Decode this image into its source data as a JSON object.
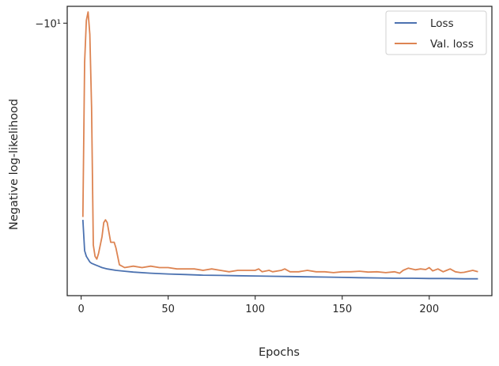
{
  "chart_data": {
    "type": "line",
    "xlabel": "Epochs",
    "ylabel": "Negative log-likelihood",
    "xlim": [
      -8,
      236
    ],
    "xticks": [
      0,
      50,
      100,
      150,
      200
    ],
    "yscale": "symlog",
    "ylim": [
      -10.97,
      -9.94
    ],
    "yticks": [
      {
        "value": -10,
        "label": "−10¹"
      }
    ],
    "grid": false,
    "legend_position": "top-right",
    "series": [
      {
        "name": "Loss",
        "color": "#4C72B0",
        "points": [
          [
            1,
            -10.7
          ],
          [
            2,
            -10.81
          ],
          [
            3,
            -10.83
          ],
          [
            4,
            -10.84
          ],
          [
            5,
            -10.85
          ],
          [
            6,
            -10.855
          ],
          [
            8,
            -10.86
          ],
          [
            10,
            -10.865
          ],
          [
            12,
            -10.87
          ],
          [
            15,
            -10.875
          ],
          [
            20,
            -10.88
          ],
          [
            25,
            -10.883
          ],
          [
            30,
            -10.886
          ],
          [
            40,
            -10.89
          ],
          [
            50,
            -10.893
          ],
          [
            60,
            -10.895
          ],
          [
            70,
            -10.897
          ],
          [
            80,
            -10.898
          ],
          [
            90,
            -10.899
          ],
          [
            100,
            -10.9
          ],
          [
            110,
            -10.901
          ],
          [
            120,
            -10.902
          ],
          [
            130,
            -10.903
          ],
          [
            140,
            -10.904
          ],
          [
            150,
            -10.905
          ],
          [
            160,
            -10.906
          ],
          [
            170,
            -10.907
          ],
          [
            180,
            -10.908
          ],
          [
            190,
            -10.908
          ],
          [
            200,
            -10.909
          ],
          [
            210,
            -10.909
          ],
          [
            220,
            -10.91
          ],
          [
            228,
            -10.91
          ]
        ]
      },
      {
        "name": "Val. loss",
        "color": "#DD8452",
        "points": [
          [
            1,
            -10.69
          ],
          [
            2,
            -10.14
          ],
          [
            3,
            -9.99
          ],
          [
            4,
            -9.96
          ],
          [
            5,
            -10.04
          ],
          [
            6,
            -10.3
          ],
          [
            7,
            -10.79
          ],
          [
            8,
            -10.83
          ],
          [
            9,
            -10.84
          ],
          [
            10,
            -10.82
          ],
          [
            12,
            -10.76
          ],
          [
            13,
            -10.71
          ],
          [
            14,
            -10.7
          ],
          [
            15,
            -10.71
          ],
          [
            17,
            -10.78
          ],
          [
            19,
            -10.78
          ],
          [
            20,
            -10.8
          ],
          [
            22,
            -10.86
          ],
          [
            25,
            -10.87
          ],
          [
            30,
            -10.865
          ],
          [
            35,
            -10.87
          ],
          [
            40,
            -10.865
          ],
          [
            45,
            -10.87
          ],
          [
            50,
            -10.87
          ],
          [
            55,
            -10.875
          ],
          [
            60,
            -10.875
          ],
          [
            65,
            -10.875
          ],
          [
            70,
            -10.88
          ],
          [
            75,
            -10.875
          ],
          [
            80,
            -10.88
          ],
          [
            85,
            -10.885
          ],
          [
            90,
            -10.88
          ],
          [
            95,
            -10.88
          ],
          [
            100,
            -10.88
          ],
          [
            102,
            -10.875
          ],
          [
            104,
            -10.885
          ],
          [
            108,
            -10.88
          ],
          [
            110,
            -10.885
          ],
          [
            115,
            -10.88
          ],
          [
            117,
            -10.875
          ],
          [
            120,
            -10.885
          ],
          [
            125,
            -10.885
          ],
          [
            130,
            -10.88
          ],
          [
            135,
            -10.885
          ],
          [
            140,
            -10.885
          ],
          [
            145,
            -10.888
          ],
          [
            150,
            -10.885
          ],
          [
            155,
            -10.885
          ],
          [
            160,
            -10.883
          ],
          [
            165,
            -10.886
          ],
          [
            170,
            -10.885
          ],
          [
            175,
            -10.888
          ],
          [
            180,
            -10.885
          ],
          [
            183,
            -10.89
          ],
          [
            185,
            -10.88
          ],
          [
            188,
            -10.872
          ],
          [
            190,
            -10.875
          ],
          [
            192,
            -10.878
          ],
          [
            195,
            -10.875
          ],
          [
            198,
            -10.877
          ],
          [
            200,
            -10.87
          ],
          [
            202,
            -10.882
          ],
          [
            205,
            -10.875
          ],
          [
            208,
            -10.885
          ],
          [
            210,
            -10.88
          ],
          [
            212,
            -10.875
          ],
          [
            215,
            -10.885
          ],
          [
            218,
            -10.888
          ],
          [
            220,
            -10.887
          ],
          [
            225,
            -10.88
          ],
          [
            228,
            -10.885
          ]
        ]
      }
    ]
  }
}
